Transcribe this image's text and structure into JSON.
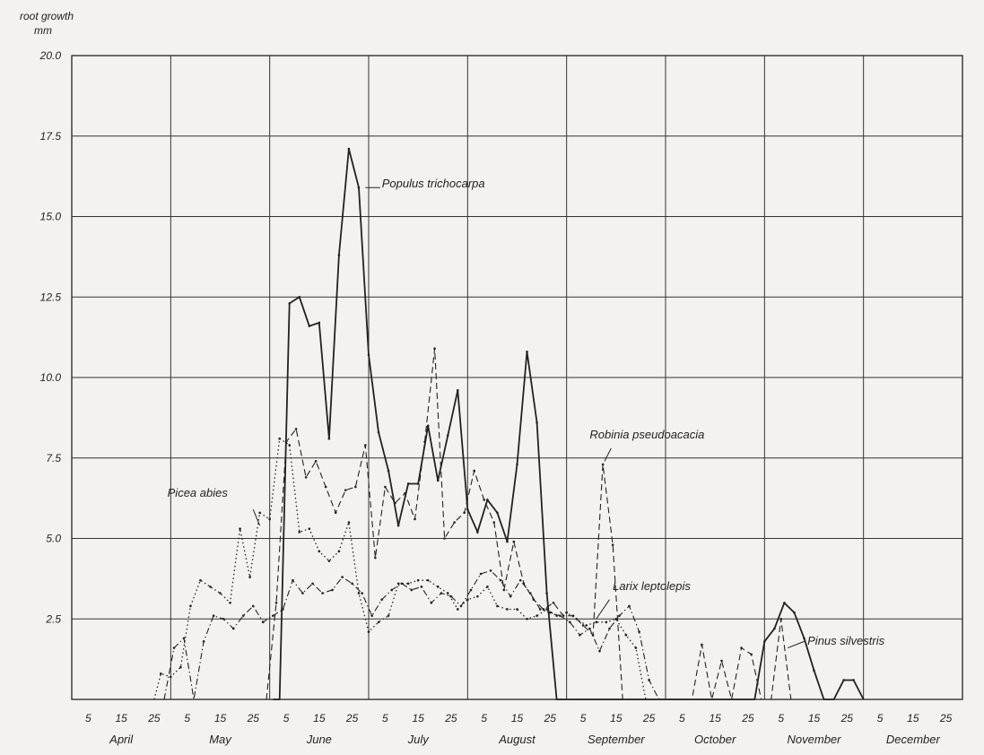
{
  "chart_data": {
    "type": "line",
    "ylabel": "root growth",
    "yunit": "mm",
    "ylim": [
      0,
      20
    ],
    "y_tick_labels": [
      "2.5",
      "5.0",
      "7.5",
      "10.0",
      "12.5",
      "15.0",
      "17.5",
      "20.0"
    ],
    "y_ticks": [
      2.5,
      5,
      7.5,
      10,
      12.5,
      15,
      17.5,
      20
    ],
    "xlim": [
      0,
      270
    ],
    "x_day_labels": [
      "5",
      "15",
      "25"
    ],
    "months": [
      "April",
      "May",
      "June",
      "July",
      "August",
      "September",
      "October",
      "November",
      "December"
    ],
    "grid": true,
    "series": [
      {
        "name": "Populus trichocarpa",
        "style": "solid",
        "points": [
          [
            61,
            0
          ],
          [
            63,
            0
          ],
          [
            66,
            12.3
          ],
          [
            69,
            12.5
          ],
          [
            72,
            11.6
          ],
          [
            75,
            11.7
          ],
          [
            78,
            8.1
          ],
          [
            81,
            13.8
          ],
          [
            84,
            17.1
          ],
          [
            87,
            15.9
          ],
          [
            90,
            10.7
          ],
          [
            93,
            8.3
          ],
          [
            96,
            7.1
          ],
          [
            99,
            5.4
          ],
          [
            102,
            6.7
          ],
          [
            105,
            6.7
          ],
          [
            108,
            8.5
          ],
          [
            111,
            6.8
          ],
          [
            114,
            8.2
          ],
          [
            117,
            9.6
          ],
          [
            120,
            5.9
          ],
          [
            123,
            5.2
          ],
          [
            126,
            6.2
          ],
          [
            129,
            5.8
          ],
          [
            132,
            4.9
          ],
          [
            135,
            7.3
          ],
          [
            138,
            10.8
          ],
          [
            141,
            8.6
          ],
          [
            144,
            3.3
          ],
          [
            147,
            0
          ],
          [
            207,
            0
          ],
          [
            210,
            1.8
          ],
          [
            213,
            2.2
          ],
          [
            216,
            3.0
          ],
          [
            219,
            2.7
          ],
          [
            222,
            1.9
          ],
          [
            225,
            0.9
          ],
          [
            228,
            0
          ],
          [
            231,
            0
          ],
          [
            234,
            0.6
          ],
          [
            237,
            0.6
          ],
          [
            240,
            0
          ]
        ]
      },
      {
        "name": "Robinia pseudoacacia",
        "style": "dashed",
        "points": [
          [
            59,
            0
          ],
          [
            62,
            3.0
          ],
          [
            65,
            8.0
          ],
          [
            68,
            8.4
          ],
          [
            71,
            6.9
          ],
          [
            74,
            7.4
          ],
          [
            77,
            6.6
          ],
          [
            80,
            5.8
          ],
          [
            83,
            6.5
          ],
          [
            86,
            6.6
          ],
          [
            89,
            7.9
          ],
          [
            92,
            4.4
          ],
          [
            95,
            6.6
          ],
          [
            98,
            6.1
          ],
          [
            101,
            6.4
          ],
          [
            104,
            5.6
          ],
          [
            107,
            8.0
          ],
          [
            110,
            10.9
          ],
          [
            113,
            5.0
          ],
          [
            116,
            5.5
          ],
          [
            119,
            5.8
          ],
          [
            122,
            7.1
          ],
          [
            125,
            6.2
          ],
          [
            128,
            5.5
          ],
          [
            131,
            3.4
          ],
          [
            134,
            4.9
          ],
          [
            137,
            3.6
          ],
          [
            140,
            3.1
          ],
          [
            143,
            2.8
          ],
          [
            146,
            3.0
          ],
          [
            149,
            2.6
          ],
          [
            152,
            2.6
          ],
          [
            155,
            2.3
          ],
          [
            158,
            2.0
          ],
          [
            161,
            7.3
          ],
          [
            164,
            4.8
          ],
          [
            167,
            0
          ],
          [
            188,
            0
          ],
          [
            191,
            1.7
          ],
          [
            194,
            0
          ],
          [
            197,
            1.2
          ],
          [
            200,
            0
          ],
          [
            203,
            1.6
          ],
          [
            206,
            1.4
          ],
          [
            209,
            0
          ],
          [
            212,
            0
          ],
          [
            215,
            2.5
          ],
          [
            218,
            0
          ]
        ]
      },
      {
        "name": "Picea abies",
        "style": "dotted",
        "points": [
          [
            25,
            0
          ],
          [
            27,
            0.8
          ],
          [
            30,
            0.7
          ],
          [
            33,
            1.0
          ],
          [
            36,
            2.9
          ],
          [
            39,
            3.7
          ],
          [
            42,
            3.5
          ],
          [
            45,
            3.3
          ],
          [
            48,
            3.0
          ],
          [
            51,
            5.3
          ],
          [
            54,
            3.8
          ],
          [
            57,
            5.8
          ],
          [
            60,
            5.6
          ],
          [
            63,
            8.1
          ],
          [
            66,
            7.9
          ],
          [
            69,
            5.2
          ],
          [
            72,
            5.3
          ],
          [
            75,
            4.6
          ],
          [
            78,
            4.3
          ],
          [
            81,
            4.6
          ],
          [
            84,
            5.5
          ],
          [
            87,
            3.3
          ],
          [
            90,
            2.1
          ],
          [
            93,
            2.4
          ],
          [
            96,
            2.6
          ],
          [
            99,
            3.6
          ],
          [
            102,
            3.6
          ],
          [
            105,
            3.7
          ],
          [
            108,
            3.7
          ],
          [
            111,
            3.5
          ],
          [
            114,
            3.3
          ],
          [
            117,
            2.8
          ],
          [
            120,
            3.1
          ],
          [
            123,
            3.2
          ],
          [
            126,
            3.5
          ],
          [
            129,
            2.9
          ],
          [
            132,
            2.8
          ],
          [
            135,
            2.8
          ],
          [
            138,
            2.5
          ],
          [
            141,
            2.6
          ],
          [
            144,
            2.8
          ],
          [
            147,
            2.6
          ],
          [
            150,
            2.7
          ],
          [
            153,
            2.5
          ],
          [
            156,
            2.3
          ],
          [
            159,
            2.4
          ],
          [
            162,
            2.4
          ],
          [
            165,
            2.5
          ],
          [
            168,
            2.0
          ],
          [
            171,
            1.6
          ],
          [
            174,
            0
          ]
        ]
      },
      {
        "name": "Larix leptolepis",
        "style": "dashdot",
        "points": [
          [
            28,
            0
          ],
          [
            31,
            1.6
          ],
          [
            34,
            1.9
          ],
          [
            37,
            0
          ],
          [
            40,
            1.8
          ],
          [
            43,
            2.6
          ],
          [
            46,
            2.5
          ],
          [
            49,
            2.2
          ],
          [
            52,
            2.6
          ],
          [
            55,
            2.9
          ],
          [
            58,
            2.4
          ],
          [
            61,
            2.6
          ],
          [
            64,
            2.8
          ],
          [
            67,
            3.7
          ],
          [
            70,
            3.3
          ],
          [
            73,
            3.6
          ],
          [
            76,
            3.3
          ],
          [
            79,
            3.4
          ],
          [
            82,
            3.8
          ],
          [
            85,
            3.6
          ],
          [
            88,
            3.3
          ],
          [
            91,
            2.6
          ],
          [
            94,
            3.1
          ],
          [
            97,
            3.4
          ],
          [
            100,
            3.6
          ],
          [
            103,
            3.4
          ],
          [
            106,
            3.5
          ],
          [
            109,
            3.0
          ],
          [
            112,
            3.3
          ],
          [
            115,
            3.2
          ],
          [
            118,
            2.9
          ],
          [
            121,
            3.4
          ],
          [
            124,
            3.9
          ],
          [
            127,
            4.0
          ],
          [
            130,
            3.7
          ],
          [
            133,
            3.2
          ],
          [
            136,
            3.7
          ],
          [
            139,
            3.3
          ],
          [
            142,
            2.8
          ],
          [
            145,
            2.7
          ],
          [
            148,
            2.6
          ],
          [
            151,
            2.4
          ],
          [
            154,
            2.0
          ],
          [
            157,
            2.2
          ],
          [
            160,
            1.5
          ],
          [
            163,
            2.2
          ],
          [
            166,
            2.6
          ],
          [
            169,
            2.9
          ],
          [
            172,
            2.1
          ],
          [
            175,
            0.6
          ],
          [
            178,
            0
          ]
        ]
      }
    ],
    "labels": [
      {
        "name": "Populus trichocarpa",
        "text_x": 94,
        "text_y": 15.9,
        "leader": [
          [
            89,
            15.9
          ],
          [
            93.5,
            15.9
          ]
        ]
      },
      {
        "name": "Robinia pseudoacacia",
        "text_x": 157,
        "text_y": 8.1,
        "leader": [
          [
            161.5,
            7.4
          ],
          [
            163.5,
            7.8
          ]
        ]
      },
      {
        "name": "Picea abies",
        "text_x": 29,
        "text_y": 6.3,
        "leader": [
          [
            55,
            5.9
          ],
          [
            57,
            5.4
          ]
        ]
      },
      {
        "name": "Larix leptolepis",
        "text_x": 164,
        "text_y": 3.4,
        "leader": [
          [
            159,
            2.5
          ],
          [
            163,
            3.1
          ]
        ]
      },
      {
        "name": "Pinus silvestris",
        "text_x": 223,
        "text_y": 1.7,
        "leader": [
          [
            217,
            1.6
          ],
          [
            222,
            1.8
          ]
        ]
      }
    ]
  }
}
